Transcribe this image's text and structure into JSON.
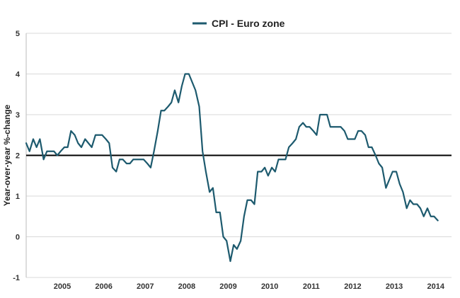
{
  "chart_data": {
    "type": "line",
    "title": "",
    "xlabel": "",
    "ylabel": "Year-over-year %-change",
    "ylim": [
      -1,
      5
    ],
    "yticks": [
      -1,
      0,
      1,
      2,
      3,
      4,
      5
    ],
    "xlim": [
      2004.0,
      2014.25
    ],
    "xtick_labels": [
      "2005",
      "2006",
      "2007",
      "2008",
      "2009",
      "2010",
      "2011",
      "2012",
      "2013",
      "2014"
    ],
    "xtick_values": [
      2004.87,
      2005.87,
      2006.87,
      2007.87,
      2008.87,
      2009.87,
      2010.87,
      2011.87,
      2012.87,
      2013.87
    ],
    "reference_line": {
      "y": 2.0,
      "color": "#000000"
    },
    "legend": {
      "placement": "top-center"
    },
    "grid": {
      "horizontal": true,
      "vertical": false,
      "color": "#d9d9d9"
    },
    "series": [
      {
        "name": "CPI - Euro zone",
        "color": "#1d5a6e",
        "points": [
          [
            2004.0,
            2.3
          ],
          [
            2004.08,
            2.1
          ],
          [
            2004.17,
            2.4
          ],
          [
            2004.25,
            2.2
          ],
          [
            2004.33,
            2.4
          ],
          [
            2004.42,
            1.9
          ],
          [
            2004.5,
            2.1
          ],
          [
            2004.58,
            2.1
          ],
          [
            2004.67,
            2.1
          ],
          [
            2004.75,
            2.0
          ],
          [
            2004.83,
            2.1
          ],
          [
            2004.92,
            2.2
          ],
          [
            2005.0,
            2.2
          ],
          [
            2005.08,
            2.6
          ],
          [
            2005.17,
            2.5
          ],
          [
            2005.25,
            2.3
          ],
          [
            2005.33,
            2.2
          ],
          [
            2005.42,
            2.4
          ],
          [
            2005.5,
            2.3
          ],
          [
            2005.58,
            2.2
          ],
          [
            2005.67,
            2.5
          ],
          [
            2005.75,
            2.5
          ],
          [
            2005.83,
            2.5
          ],
          [
            2005.92,
            2.4
          ],
          [
            2006.0,
            2.3
          ],
          [
            2006.08,
            1.7
          ],
          [
            2006.17,
            1.6
          ],
          [
            2006.25,
            1.9
          ],
          [
            2006.33,
            1.9
          ],
          [
            2006.42,
            1.8
          ],
          [
            2006.5,
            1.8
          ],
          [
            2006.58,
            1.9
          ],
          [
            2006.67,
            1.9
          ],
          [
            2006.75,
            1.9
          ],
          [
            2006.83,
            1.9
          ],
          [
            2006.92,
            1.8
          ],
          [
            2007.0,
            1.7
          ],
          [
            2007.08,
            2.1
          ],
          [
            2007.17,
            2.6
          ],
          [
            2007.25,
            3.1
          ],
          [
            2007.33,
            3.1
          ],
          [
            2007.42,
            3.2
          ],
          [
            2007.5,
            3.3
          ],
          [
            2007.58,
            3.6
          ],
          [
            2007.67,
            3.3
          ],
          [
            2007.75,
            3.7
          ],
          [
            2007.83,
            4.0
          ],
          [
            2007.92,
            4.0
          ],
          [
            2008.0,
            3.8
          ],
          [
            2008.08,
            3.6
          ],
          [
            2008.17,
            3.2
          ],
          [
            2008.25,
            2.1
          ],
          [
            2008.33,
            1.6
          ],
          [
            2008.42,
            1.1
          ],
          [
            2008.5,
            1.2
          ],
          [
            2008.58,
            0.6
          ],
          [
            2008.67,
            0.6
          ],
          [
            2008.75,
            0.0
          ],
          [
            2008.83,
            -0.1
          ],
          [
            2008.92,
            -0.6
          ],
          [
            2009.0,
            -0.2
          ],
          [
            2009.08,
            -0.3
          ],
          [
            2009.17,
            -0.1
          ],
          [
            2009.25,
            0.5
          ],
          [
            2009.33,
            0.9
          ],
          [
            2009.42,
            0.9
          ],
          [
            2009.5,
            0.8
          ],
          [
            2009.58,
            1.6
          ],
          [
            2009.67,
            1.6
          ],
          [
            2009.75,
            1.7
          ],
          [
            2009.83,
            1.5
          ],
          [
            2009.92,
            1.7
          ],
          [
            2010.0,
            1.6
          ],
          [
            2010.08,
            1.9
          ],
          [
            2010.17,
            1.9
          ],
          [
            2010.25,
            1.9
          ],
          [
            2010.33,
            2.2
          ],
          [
            2010.42,
            2.3
          ],
          [
            2010.5,
            2.4
          ],
          [
            2010.58,
            2.7
          ],
          [
            2010.67,
            2.8
          ],
          [
            2010.75,
            2.7
          ],
          [
            2010.83,
            2.7
          ],
          [
            2010.92,
            2.6
          ],
          [
            2011.0,
            2.5
          ],
          [
            2011.08,
            3.0
          ],
          [
            2011.17,
            3.0
          ],
          [
            2011.25,
            3.0
          ],
          [
            2011.33,
            2.7
          ],
          [
            2011.42,
            2.7
          ],
          [
            2011.5,
            2.7
          ],
          [
            2011.58,
            2.7
          ],
          [
            2011.67,
            2.6
          ],
          [
            2011.75,
            2.4
          ],
          [
            2011.83,
            2.4
          ],
          [
            2011.92,
            2.4
          ],
          [
            2012.0,
            2.6
          ],
          [
            2012.08,
            2.6
          ],
          [
            2012.17,
            2.5
          ],
          [
            2012.25,
            2.2
          ],
          [
            2012.33,
            2.2
          ],
          [
            2012.42,
            2.0
          ],
          [
            2012.5,
            1.8
          ],
          [
            2012.58,
            1.7
          ],
          [
            2012.67,
            1.2
          ],
          [
            2012.75,
            1.4
          ],
          [
            2012.83,
            1.6
          ],
          [
            2012.92,
            1.6
          ],
          [
            2013.0,
            1.3
          ],
          [
            2013.08,
            1.1
          ],
          [
            2013.17,
            0.7
          ],
          [
            2013.25,
            0.9
          ],
          [
            2013.33,
            0.8
          ],
          [
            2013.42,
            0.8
          ],
          [
            2013.5,
            0.7
          ],
          [
            2013.58,
            0.5
          ],
          [
            2013.67,
            0.7
          ],
          [
            2013.75,
            0.5
          ],
          [
            2013.83,
            0.5
          ],
          [
            2013.92,
            0.4
          ]
        ]
      }
    ]
  }
}
